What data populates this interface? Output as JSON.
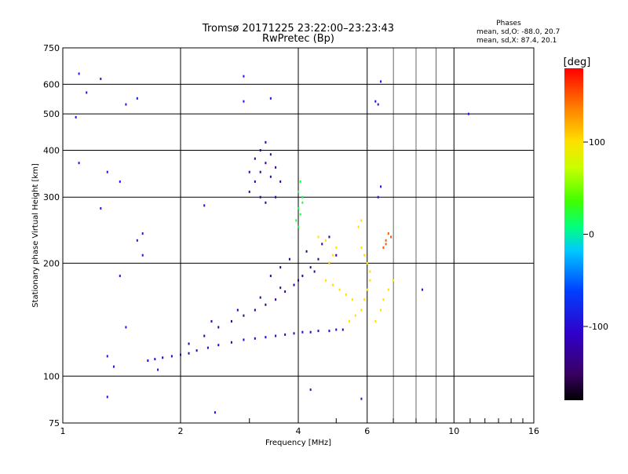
{
  "chart_data": {
    "type": "scatter",
    "title": "Tromsø 20171225 23:22:00–23:23:43",
    "subtitle": "RwPretec (Bp)",
    "xlabel": "Frequency [MHz]",
    "ylabel": "Stationary phase Virtual Height [km]",
    "x_scale": "log",
    "y_scale": "log",
    "xlim": [
      1,
      16
    ],
    "ylim": [
      75,
      750
    ],
    "x_ticks": [
      1,
      2,
      4,
      6,
      10,
      16
    ],
    "x_tick_labels": [
      "1",
      "2",
      "4",
      "6",
      "10",
      "16"
    ],
    "y_ticks": [
      75,
      100,
      200,
      300,
      400,
      500,
      600,
      750
    ],
    "y_tick_labels": [
      "75",
      "100",
      "200",
      "300",
      "400",
      "500",
      "600",
      "750"
    ],
    "grid": true,
    "stats": {
      "heading": "Phases",
      "line_o": "mean, sd,O: -88.0, 20.7",
      "line_x": "mean, sd,X:  87.4, 20.1"
    },
    "colorbar": {
      "label": "[deg]",
      "range": [
        -180,
        180
      ],
      "ticks": [
        100,
        0,
        -100
      ],
      "tick_labels": [
        "100",
        "0",
        "-100"
      ]
    },
    "series": [
      {
        "group": "low_trace",
        "points": [
          [
            1.65,
            110
          ],
          [
            1.72,
            111
          ],
          [
            1.8,
            112
          ],
          [
            1.9,
            113
          ],
          [
            2.0,
            114
          ],
          [
            2.1,
            115
          ],
          [
            2.2,
            117
          ],
          [
            2.35,
            119
          ],
          [
            2.5,
            121
          ],
          [
            2.7,
            123
          ],
          [
            2.9,
            125
          ],
          [
            3.1,
            126
          ],
          [
            3.3,
            127
          ],
          [
            3.5,
            128
          ],
          [
            3.7,
            129
          ],
          [
            3.9,
            130
          ],
          [
            4.1,
            131
          ],
          [
            4.3,
            131
          ],
          [
            4.5,
            132
          ],
          [
            4.8,
            132
          ],
          [
            5.0,
            133
          ],
          [
            5.2,
            133
          ]
        ],
        "phase": -110
      },
      {
        "group": "mid_traces",
        "points": [
          [
            2.1,
            122
          ],
          [
            2.3,
            128
          ],
          [
            2.5,
            135
          ],
          [
            2.7,
            140
          ],
          [
            2.9,
            145
          ],
          [
            3.1,
            150
          ],
          [
            3.3,
            155
          ],
          [
            3.5,
            160
          ],
          [
            3.7,
            168
          ],
          [
            3.9,
            175
          ],
          [
            4.1,
            185
          ],
          [
            4.3,
            195
          ],
          [
            4.5,
            205
          ],
          [
            2.4,
            140
          ],
          [
            2.8,
            150
          ],
          [
            3.2,
            162
          ],
          [
            3.6,
            172
          ],
          [
            4.0,
            180
          ],
          [
            4.4,
            190
          ],
          [
            4.8,
            200
          ],
          [
            5.0,
            210
          ],
          [
            3.4,
            185
          ],
          [
            3.6,
            195
          ],
          [
            3.8,
            205
          ],
          [
            4.2,
            215
          ],
          [
            4.6,
            225
          ],
          [
            4.8,
            235
          ]
        ],
        "phase": -130
      },
      {
        "group": "f_region_spread",
        "points": [
          [
            3.0,
            310
          ],
          [
            3.1,
            330
          ],
          [
            3.2,
            350
          ],
          [
            3.3,
            370
          ],
          [
            3.4,
            390
          ],
          [
            3.5,
            360
          ],
          [
            3.2,
            400
          ],
          [
            3.3,
            420
          ],
          [
            3.1,
            380
          ],
          [
            3.4,
            340
          ],
          [
            3.0,
            350
          ],
          [
            3.6,
            330
          ],
          [
            3.5,
            300
          ],
          [
            3.3,
            290
          ],
          [
            3.2,
            300
          ]
        ],
        "phase": -130
      },
      {
        "group": "cyan_column",
        "points": [
          [
            4.0,
            250
          ],
          [
            4.05,
            270
          ],
          [
            4.1,
            290
          ],
          [
            4.0,
            310
          ],
          [
            4.05,
            330
          ],
          [
            4.1,
            300
          ],
          [
            3.95,
            260
          ],
          [
            4.0,
            280
          ]
        ],
        "phase": 20
      },
      {
        "group": "yellow_cusp",
        "points": [
          [
            5.4,
            140
          ],
          [
            5.6,
            145
          ],
          [
            5.8,
            150
          ],
          [
            5.9,
            160
          ],
          [
            6.0,
            170
          ],
          [
            6.1,
            180
          ],
          [
            6.1,
            190
          ],
          [
            6.0,
            200
          ],
          [
            5.9,
            210
          ],
          [
            5.8,
            220
          ],
          [
            5.5,
            160
          ],
          [
            5.3,
            165
          ],
          [
            5.1,
            170
          ],
          [
            4.9,
            175
          ],
          [
            4.7,
            180
          ],
          [
            4.8,
            200
          ],
          [
            4.9,
            210
          ],
          [
            5.0,
            220
          ],
          [
            4.7,
            230
          ],
          [
            4.5,
            235
          ],
          [
            5.7,
            250
          ],
          [
            5.8,
            260
          ],
          [
            6.3,
            140
          ],
          [
            6.5,
            150
          ],
          [
            6.6,
            160
          ],
          [
            6.8,
            170
          ],
          [
            7.0,
            180
          ]
        ],
        "phase": 100
      },
      {
        "group": "orange_cluster",
        "points": [
          [
            6.6,
            220
          ],
          [
            6.7,
            230
          ],
          [
            6.8,
            240
          ],
          [
            6.9,
            235
          ],
          [
            6.7,
            225
          ]
        ],
        "phase": 150
      },
      {
        "group": "scattered",
        "points": [
          [
            1.1,
            640
          ],
          [
            1.25,
            620
          ],
          [
            1.15,
            570
          ],
          [
            1.45,
            530
          ],
          [
            1.55,
            550
          ],
          [
            1.08,
            490
          ],
          [
            2.9,
            630
          ],
          [
            2.9,
            540
          ],
          [
            3.4,
            550
          ],
          [
            6.3,
            540
          ],
          [
            6.4,
            530
          ],
          [
            6.5,
            610
          ],
          [
            10.9,
            500
          ],
          [
            1.1,
            370
          ],
          [
            1.3,
            350
          ],
          [
            1.4,
            330
          ],
          [
            1.25,
            280
          ],
          [
            1.6,
            240
          ],
          [
            1.55,
            230
          ],
          [
            1.6,
            210
          ],
          [
            1.4,
            185
          ],
          [
            1.3,
            113
          ],
          [
            1.35,
            106
          ],
          [
            1.45,
            135
          ],
          [
            1.3,
            88
          ],
          [
            2.3,
            285
          ],
          [
            6.5,
            320
          ],
          [
            6.4,
            300
          ],
          [
            8.3,
            170
          ],
          [
            4.3,
            92
          ],
          [
            5.8,
            87
          ],
          [
            2.45,
            80
          ],
          [
            1.75,
            104
          ]
        ],
        "phase": -90
      }
    ]
  }
}
